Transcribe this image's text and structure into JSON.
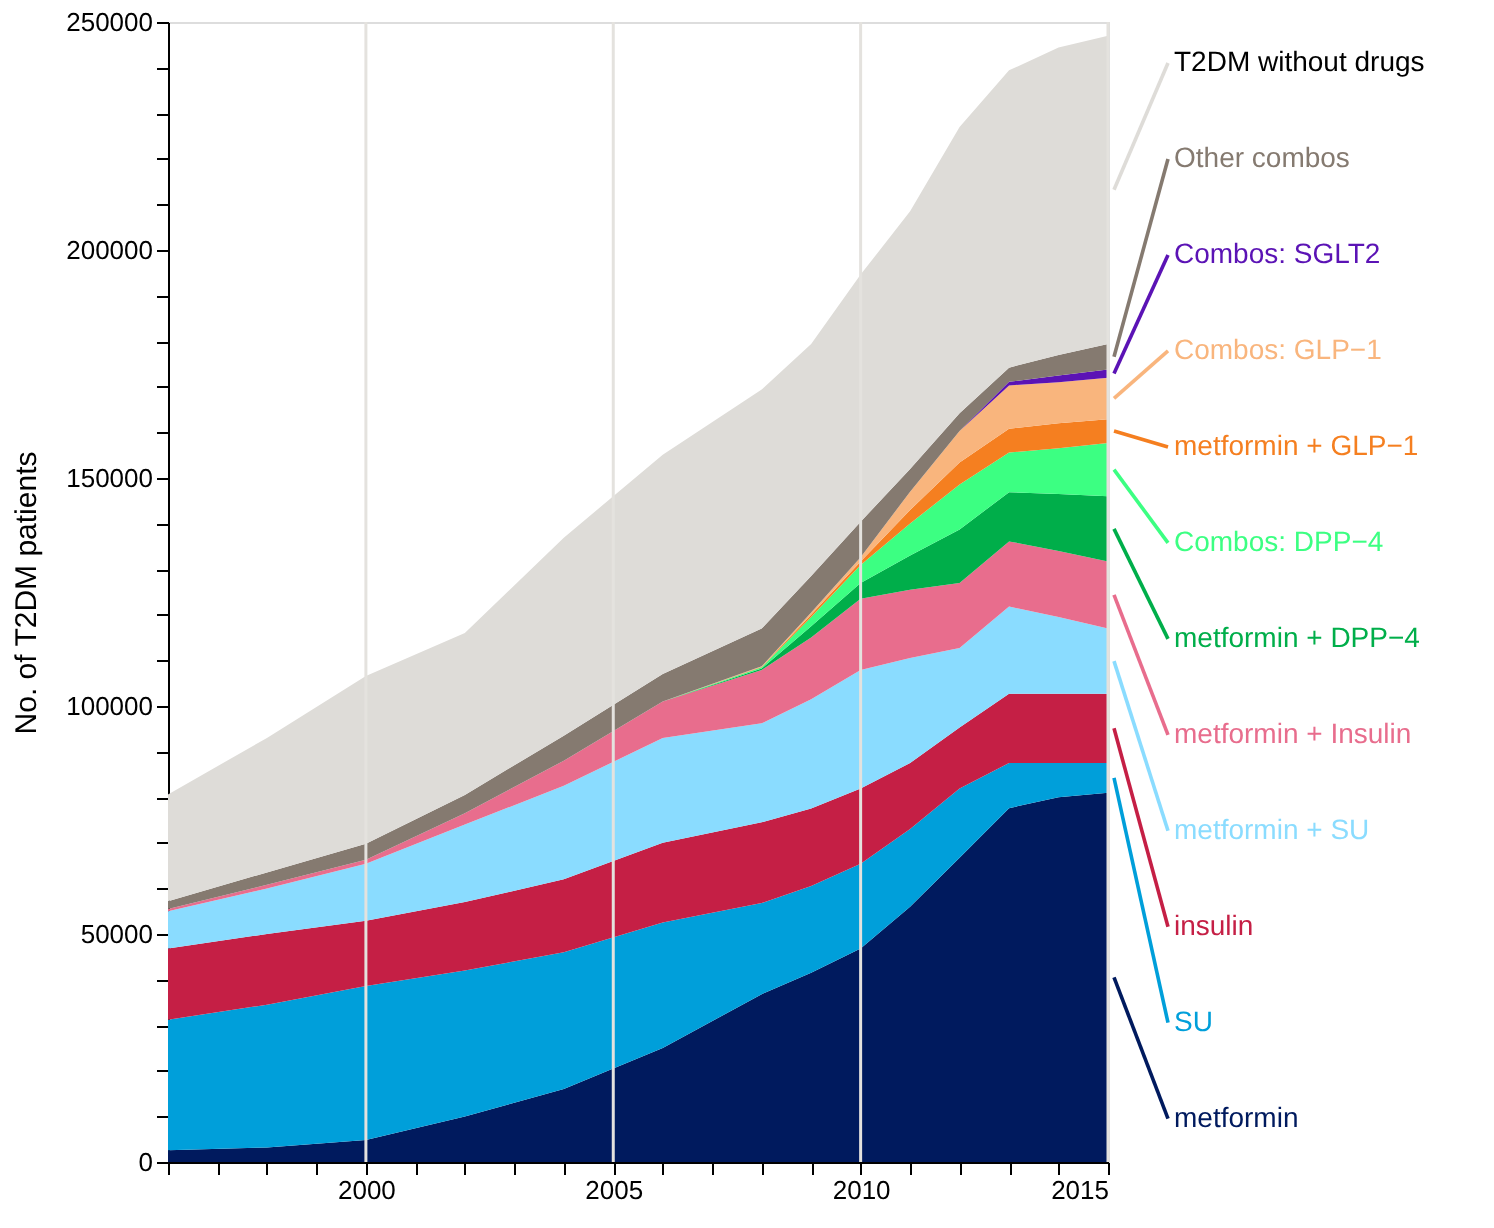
{
  "chart_data": {
    "type": "area",
    "stacked": true,
    "ylabel": "No. of T2DM patients",
    "x": [
      1996,
      1998,
      2000,
      2002,
      2004,
      2006,
      2008,
      2009,
      2010,
      2011,
      2012,
      2013,
      2014,
      2015
    ],
    "xlim": [
      1996,
      2015
    ],
    "xticks": [
      {
        "value": 1996,
        "label": null
      },
      {
        "value": 1997,
        "label": null
      },
      {
        "value": 1998,
        "label": null
      },
      {
        "value": 1999,
        "label": null
      },
      2000,
      {
        "value": 2001,
        "label": null
      },
      {
        "value": 2002,
        "label": null
      },
      {
        "value": 2003,
        "label": null
      },
      {
        "value": 2004,
        "label": null
      },
      2005,
      {
        "value": 2006,
        "label": null
      },
      {
        "value": 2007,
        "label": null
      },
      {
        "value": 2008,
        "label": null
      },
      {
        "value": 2009,
        "label": null
      },
      2010,
      {
        "value": 2011,
        "label": null
      },
      {
        "value": 2012,
        "label": null
      },
      {
        "value": 2013,
        "label": null
      },
      {
        "value": 2014,
        "label": null
      },
      2015
    ],
    "ylim": [
      0,
      250000
    ],
    "yticks": [
      0,
      {
        "value": 10000,
        "label": null
      },
      {
        "value": 20000,
        "label": null
      },
      {
        "value": 30000,
        "label": null
      },
      {
        "value": 40000,
        "label": null
      },
      50000,
      {
        "value": 60000,
        "label": null
      },
      {
        "value": 70000,
        "label": null
      },
      {
        "value": 80000,
        "label": null
      },
      {
        "value": 90000,
        "label": null
      },
      100000,
      {
        "value": 110000,
        "label": null
      },
      {
        "value": 120000,
        "label": null
      },
      {
        "value": 130000,
        "label": null
      },
      {
        "value": 140000,
        "label": null
      },
      150000,
      {
        "value": 160000,
        "label": null
      },
      {
        "value": 170000,
        "label": null
      },
      {
        "value": 180000,
        "label": null
      },
      {
        "value": 190000,
        "label": null
      },
      200000,
      {
        "value": 210000,
        "label": null
      },
      {
        "value": 220000,
        "label": null
      },
      {
        "value": 230000,
        "label": null
      },
      {
        "value": 240000,
        "label": null
      },
      250000
    ],
    "grid": "x",
    "legend": "right",
    "series": [
      {
        "name": "metformin",
        "color": "#001a5e",
        "values": [
          2600,
          3200,
          4800,
          10000,
          16000,
          25000,
          36800,
          41500,
          46800,
          56000,
          66700,
          77600,
          80000,
          81000
        ]
      },
      {
        "name": "SU",
        "color": "#009fda",
        "values": [
          28600,
          31300,
          33800,
          32000,
          30000,
          27500,
          20000,
          19000,
          18600,
          17000,
          15200,
          9900,
          7500,
          6500
        ]
      },
      {
        "name": "insulin",
        "color": "#c51f45",
        "values": [
          15600,
          15500,
          14300,
          15000,
          16000,
          17500,
          17700,
          17000,
          16500,
          14500,
          13400,
          15200,
          15200,
          15200
        ]
      },
      {
        "name": "metformin + SU",
        "color": "#8adcff",
        "values": [
          8200,
          10000,
          12500,
          17000,
          20500,
          23000,
          21700,
          24000,
          26000,
          23000,
          17400,
          19100,
          16800,
          14300
        ]
      },
      {
        "name": "metformin + Insulin",
        "color": "#e86d8d",
        "values": [
          500,
          800,
          900,
          2500,
          5500,
          8000,
          11700,
          13500,
          15600,
          15000,
          14300,
          14300,
          14500,
          14700
        ]
      },
      {
        "name": "metformin + DPP−4",
        "color": "#00ae4a",
        "values": [
          0,
          0,
          0,
          0,
          0,
          0,
          300,
          2500,
          3500,
          7500,
          11700,
          10800,
          12500,
          14300
        ]
      },
      {
        "name": "Combos: DPP−4",
        "color": "#3cff82",
        "values": [
          0,
          0,
          0,
          0,
          0,
          0,
          300,
          2000,
          3900,
          7000,
          9900,
          8700,
          10000,
          11700
        ]
      },
      {
        "name": "metformin + GLP−1",
        "color": "#f57f20",
        "values": [
          0,
          0,
          0,
          0,
          0,
          0,
          100,
          500,
          800,
          3000,
          4800,
          5200,
          5500,
          5200
        ]
      },
      {
        "name": "Combos: GLP−1",
        "color": "#f9b57d",
        "values": [
          0,
          0,
          0,
          0,
          0,
          0,
          100,
          500,
          900,
          4000,
          6900,
          9500,
          9000,
          9100
        ]
      },
      {
        "name": "Combos: SGLT2",
        "color": "#5b13b5",
        "values": [
          0,
          0,
          0,
          0,
          0,
          0,
          0,
          0,
          0,
          0,
          0,
          800,
          1500,
          1800
        ]
      },
      {
        "name": "Other combos",
        "color": "#857a70",
        "values": [
          1700,
          2700,
          3500,
          4000,
          5500,
          6000,
          8300,
          8000,
          7800,
          5000,
          3900,
          3100,
          4500,
          5600
        ]
      },
      {
        "name": "T2DM without drugs",
        "color": "#dedcd8",
        "values": [
          23400,
          29500,
          36800,
          35500,
          43400,
          48100,
          52400,
          50900,
          54200,
          56500,
          62800,
          65200,
          67400,
          67600
        ]
      }
    ]
  }
}
